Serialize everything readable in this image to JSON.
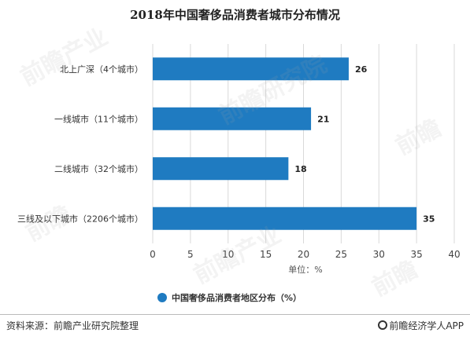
{
  "chart_data": {
    "type": "bar",
    "orientation": "horizontal",
    "title": "2018年中国奢侈品消费者城市分布情况",
    "categories": [
      "北上广深（4个城市）",
      "一线城市（11个城市）",
      "二线城市（32个城市）",
      "三线及以下城市（2206个城市）"
    ],
    "values": [
      26,
      21,
      18,
      35
    ],
    "series": [
      {
        "name": "中国奢侈品消费者地区分布（%）",
        "values": [
          26,
          21,
          18,
          35
        ]
      }
    ],
    "xlabel": "单位：%",
    "xlim": [
      0,
      40
    ],
    "xticks": [
      0,
      5,
      10,
      15,
      20,
      25,
      30,
      35,
      40
    ],
    "grid": true,
    "legend_position": "bottom",
    "bar_color": "#1f7bc1"
  },
  "footer": {
    "source": "资料来源：前瞻产业研究院整理",
    "brand": "前瞻经济学人APP"
  }
}
